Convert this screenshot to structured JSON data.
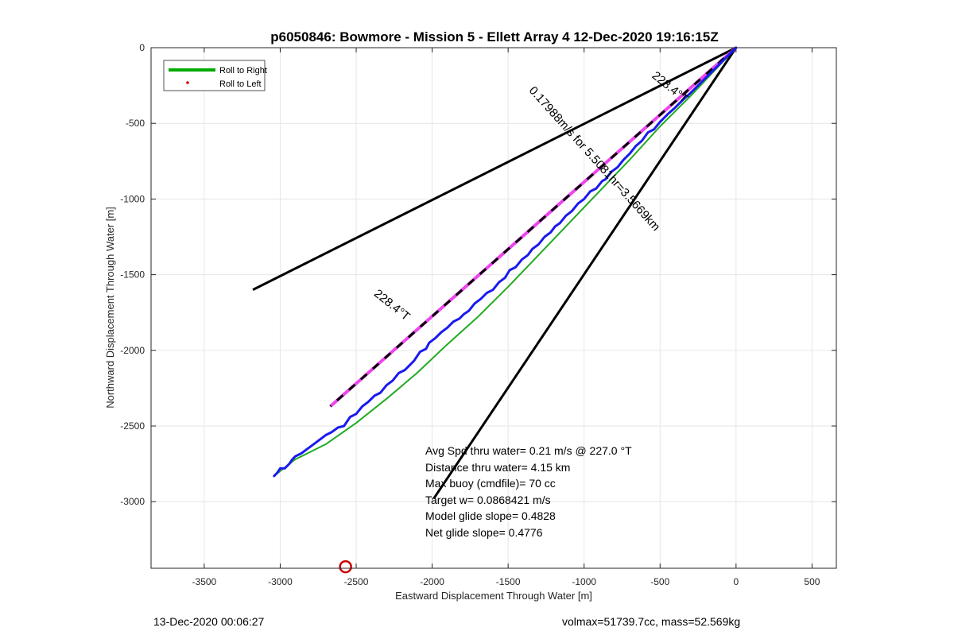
{
  "chart_data": {
    "type": "line",
    "title": "p6050846: Bowmore - Mission 5 - Ellett Array 4 12-Dec-2020 19:16:15Z",
    "xlabel": "Eastward Displacement Through Water [m]",
    "ylabel": "Northward Displacement Through Water [m]",
    "xlim": [
      -3850,
      660
    ],
    "ylim": [
      -3440,
      0
    ],
    "xticks": [
      -3500,
      -3000,
      -2500,
      -2000,
      -1500,
      -1000,
      -500,
      0,
      500
    ],
    "xtick_labels": [
      "-3500",
      "-3000",
      "-2500",
      "-2000",
      "-1500",
      "-1000",
      "-500",
      "0",
      "500"
    ],
    "yticks": [
      0,
      -500,
      -1000,
      -1500,
      -2000,
      -2500,
      -3000
    ],
    "ytick_labels": [
      "0",
      "-500",
      "-1000",
      "-1500",
      "-2000",
      "-2500",
      "-3000"
    ],
    "grid": true,
    "legend_position": "top-left",
    "legend": [
      {
        "label": "Roll to Right",
        "color": "#00aa00",
        "style": "line"
      },
      {
        "label": "Roll to Left",
        "color": "#dd0000",
        "style": "dot"
      }
    ],
    "series": [
      {
        "name": "Roll to Right",
        "color": "#22aa22",
        "width": 2,
        "x": [
          0,
          -150,
          -300,
          -500,
          -700,
          -900,
          -1100,
          -1300,
          -1500,
          -1700,
          -1900,
          -2100,
          -2300,
          -2500,
          -2700,
          -2900,
          -3040
        ],
        "y": [
          0,
          -160,
          -320,
          -520,
          -740,
          -950,
          -1160,
          -1370,
          -1580,
          -1780,
          -1960,
          -2150,
          -2320,
          -2480,
          -2620,
          -2720,
          -2830
        ]
      },
      {
        "name": "",
        "color": "#1a1aee",
        "width": 3,
        "x": [
          0,
          -40,
          -80,
          -120,
          -150,
          -200,
          -250,
          -300,
          -350,
          -400,
          -450,
          -500,
          -540,
          -580,
          -620,
          -660,
          -700,
          -740,
          -780,
          -820,
          -860,
          -880,
          -920,
          -960,
          -1000,
          -1040,
          -1080,
          -1120,
          -1160,
          -1190,
          -1220,
          -1260,
          -1300,
          -1340,
          -1370,
          -1410,
          -1450,
          -1490,
          -1520,
          -1560,
          -1600,
          -1640,
          -1680,
          -1720,
          -1760,
          -1790,
          -1820,
          -1860,
          -1900,
          -1940,
          -1980,
          -2020,
          -2040,
          -2080,
          -2120,
          -2150,
          -2180,
          -2220,
          -2260,
          -2300,
          -2340,
          -2380,
          -2420,
          -2460,
          -2500,
          -2540,
          -2580,
          -2620,
          -2660,
          -2700,
          -2740,
          -2780,
          -2820,
          -2860,
          -2900,
          -2920,
          -2940,
          -2970,
          -3000,
          -3020,
          -3040
        ],
        "y": [
          0,
          -40,
          -80,
          -120,
          -150,
          -200,
          -250,
          -300,
          -345,
          -395,
          -440,
          -490,
          -540,
          -560,
          -615,
          -650,
          -700,
          -740,
          -790,
          -820,
          -870,
          -880,
          -930,
          -950,
          -1000,
          -1030,
          -1080,
          -1110,
          -1160,
          -1180,
          -1220,
          -1250,
          -1300,
          -1330,
          -1370,
          -1400,
          -1450,
          -1470,
          -1520,
          -1550,
          -1600,
          -1620,
          -1660,
          -1690,
          -1740,
          -1760,
          -1790,
          -1810,
          -1850,
          -1880,
          -1920,
          -1950,
          -1990,
          -2010,
          -2070,
          -2100,
          -2130,
          -2150,
          -2200,
          -2230,
          -2280,
          -2300,
          -2340,
          -2370,
          -2420,
          -2440,
          -2500,
          -2510,
          -2540,
          -2560,
          -2590,
          -2620,
          -2650,
          -2680,
          -2700,
          -2720,
          -2750,
          -2780,
          -2780,
          -2810,
          -2830
        ]
      }
    ],
    "reference_lines": [
      {
        "x": [
          0,
          -3180
        ],
        "y": [
          0,
          -1600
        ],
        "color": "#000000",
        "width": 3,
        "dash": ""
      },
      {
        "x": [
          0,
          -1990
        ],
        "y": [
          0,
          -2980
        ],
        "color": "#000000",
        "width": 3,
        "dash": ""
      },
      {
        "x": [
          0,
          -2670
        ],
        "y": [
          0,
          -2370
        ],
        "color": "#ee44ee",
        "width": 4,
        "dash": ""
      },
      {
        "x": [
          0,
          -2670
        ],
        "y": [
          0,
          -2370
        ],
        "color": "#000000",
        "width": 3,
        "dash": "10 10"
      }
    ],
    "text_annotations": [
      {
        "text": "228.4°T",
        "x": -2280,
        "y": -1720,
        "rotate": 38.8
      },
      {
        "text": "228.4°T",
        "x": -450,
        "y": -280,
        "rotate": 38.8
      },
      {
        "text": "0.17988m/s for 5.5081hr=3.5669km",
        "x": -950,
        "y": -750,
        "rotate": 48.1
      }
    ],
    "marker": {
      "x": -2570,
      "y": -3430,
      "color": "#cc0000"
    },
    "stats": [
      "Avg Spd thru water=  0.21 m/s @ 227.0 °T",
      "Distance thru water=  4.15 km",
      "Max buoy (cmdfile)= 70 cc",
      "Target w= 0.0868421 m/s",
      "Model glide slope= 0.4828",
      "Net glide slope= 0.4776"
    ]
  },
  "footer": {
    "timestamp": "13-Dec-2020 00:06:27",
    "volmax_mass": "volmax=51739.7cc, mass=52.569kg"
  }
}
